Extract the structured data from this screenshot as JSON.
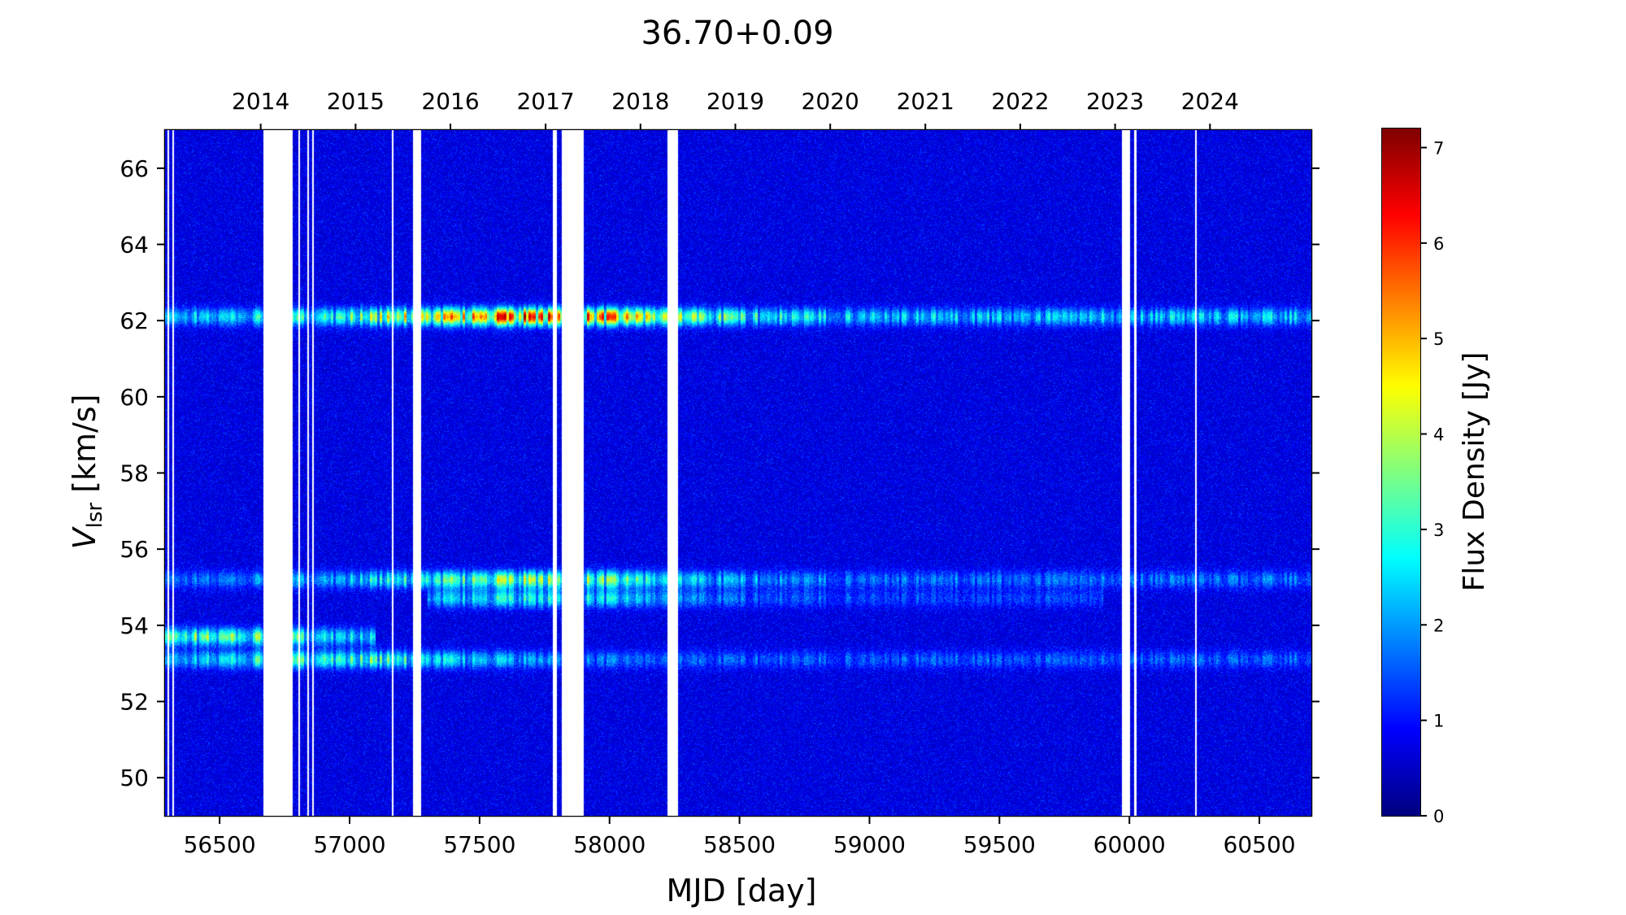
{
  "chart_data": {
    "type": "heatmap",
    "title": "36.70+0.09",
    "xlabel": "MJD [day]",
    "ylabel_main": "V",
    "ylabel_sub": "lsr",
    "ylabel_unit": " [km/s]",
    "colorbar_label": "Flux Density [Jy]",
    "colormap": "jet",
    "xlim": [
      56290,
      60700
    ],
    "ylim": [
      49.0,
      67.0
    ],
    "clim": [
      0,
      7.2
    ],
    "x_ticks": [
      56500,
      57000,
      57500,
      58000,
      58500,
      59000,
      59500,
      60000,
      60500
    ],
    "x_tick_labels": [
      "56500",
      "57000",
      "57500",
      "58000",
      "58500",
      "59000",
      "59500",
      "60000",
      "60500"
    ],
    "y_ticks": [
      50,
      52,
      54,
      56,
      58,
      60,
      62,
      64,
      66
    ],
    "y_tick_labels": [
      "50",
      "52",
      "54",
      "56",
      "58",
      "60",
      "62",
      "64",
      "66"
    ],
    "top_axis": {
      "label_positions_mjd": [
        56658,
        57023,
        57388,
        57754,
        58119,
        58484,
        58849,
        59215,
        59580,
        59945,
        60310
      ],
      "labels": [
        "2014",
        "2015",
        "2016",
        "2017",
        "2018",
        "2019",
        "2020",
        "2021",
        "2022",
        "2023",
        "2024"
      ]
    },
    "colorbar_ticks": [
      0,
      1,
      2,
      3,
      4,
      5,
      6,
      7
    ],
    "colorbar_tick_labels": [
      "0",
      "1",
      "2",
      "3",
      "4",
      "5",
      "6",
      "7"
    ],
    "data_gaps_mjd": [
      [
        56298,
        56305
      ],
      [
        56318,
        56323
      ],
      [
        56668,
        56780
      ],
      [
        56803,
        56808
      ],
      [
        56838,
        56845
      ],
      [
        56855,
        56861
      ],
      [
        57163,
        57168
      ],
      [
        57245,
        57275
      ],
      [
        57783,
        57797
      ],
      [
        57815,
        57900
      ],
      [
        58222,
        58262
      ],
      [
        59972,
        60002
      ],
      [
        60018,
        60028
      ],
      [
        60252,
        60258
      ]
    ],
    "emission_features": [
      {
        "velocity_kms": 62.1,
        "mjd_range": [
          56290,
          60700
        ],
        "peak_flux_jy": 7.0,
        "peak_mjd": 57700
      },
      {
        "velocity_kms": 55.2,
        "mjd_range": [
          56290,
          60700
        ],
        "peak_flux_jy": 4.2,
        "peak_mjd": 57680
      },
      {
        "velocity_kms": 54.7,
        "mjd_range": [
          57300,
          59900
        ],
        "peak_flux_jy": 2.8,
        "peak_mjd": 57700
      },
      {
        "velocity_kms": 53.7,
        "mjd_range": [
          56290,
          57100
        ],
        "peak_flux_jy": 4.0,
        "peak_mjd": 56450
      },
      {
        "velocity_kms": 53.1,
        "mjd_range": [
          56290,
          60700
        ],
        "peak_flux_jy": 3.6,
        "peak_mjd": 56950
      }
    ]
  }
}
